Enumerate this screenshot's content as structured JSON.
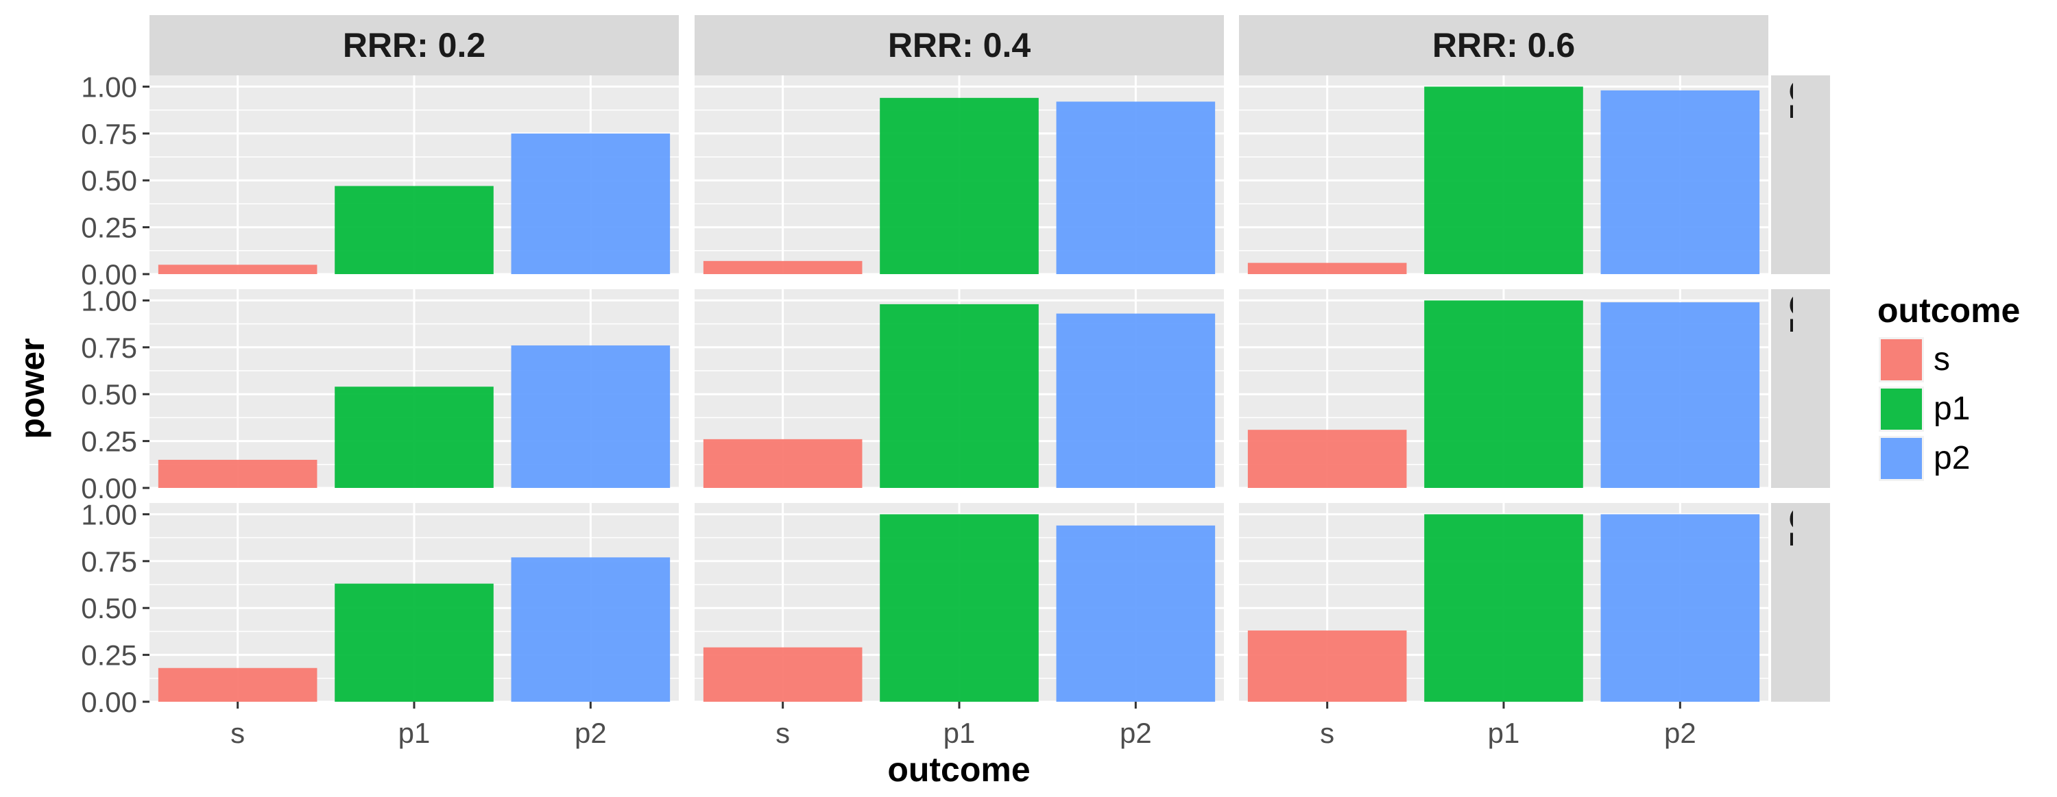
{
  "chart_data": {
    "type": "bar",
    "xlabel": "outcome",
    "ylabel": "power",
    "categories": [
      "s",
      "p1",
      "p2"
    ],
    "yticks": [
      "0.00",
      "0.25",
      "0.50",
      "0.75",
      "1.00"
    ],
    "ylim": [
      0,
      1.06
    ],
    "grid": true,
    "legend": {
      "title": "outcome",
      "entries": [
        "s",
        "p1",
        "p2"
      ],
      "position": "right"
    },
    "colors": {
      "s": "#F8766D",
      "p1": "#00BA38",
      "p2": "#619CFF",
      "panel_bg": "#EBEBEB",
      "strip_bg": "#D9D9D9",
      "grid": "#FFFFFF"
    },
    "col_facets": [
      "RRR: 0.2",
      "RRR: 0.4",
      "RRR: 0.6"
    ],
    "row_facets": [
      "CER: worst",
      "CER: base",
      "CER: best"
    ],
    "panels": [
      {
        "row": "CER: worst",
        "col": "RRR: 0.2",
        "values": [
          0.05,
          0.47,
          0.75
        ]
      },
      {
        "row": "CER: worst",
        "col": "RRR: 0.4",
        "values": [
          0.07,
          0.94,
          0.92
        ]
      },
      {
        "row": "CER: worst",
        "col": "RRR: 0.6",
        "values": [
          0.06,
          1.0,
          0.98
        ]
      },
      {
        "row": "CER: base",
        "col": "RRR: 0.2",
        "values": [
          0.15,
          0.54,
          0.76
        ]
      },
      {
        "row": "CER: base",
        "col": "RRR: 0.4",
        "values": [
          0.26,
          0.98,
          0.93
        ]
      },
      {
        "row": "CER: base",
        "col": "RRR: 0.6",
        "values": [
          0.31,
          1.0,
          0.99
        ]
      },
      {
        "row": "CER: best",
        "col": "RRR: 0.2",
        "values": [
          0.18,
          0.63,
          0.77
        ]
      },
      {
        "row": "CER: best",
        "col": "RRR: 0.4",
        "values": [
          0.29,
          1.0,
          0.94
        ]
      },
      {
        "row": "CER: best",
        "col": "RRR: 0.6",
        "values": [
          0.38,
          1.0,
          1.0
        ]
      }
    ]
  }
}
